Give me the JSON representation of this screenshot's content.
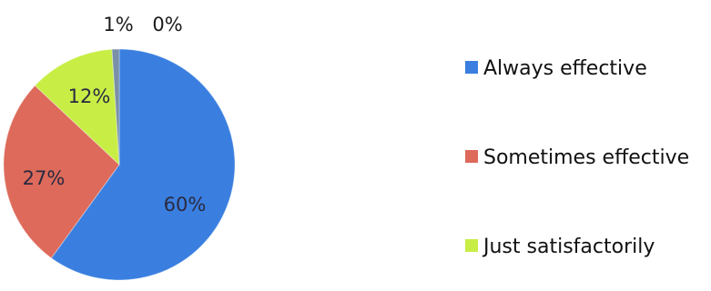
{
  "chart_data": {
    "type": "pie",
    "categories": [
      "Always effective",
      "Sometimes effective",
      "Just satisfactorily",
      "",
      ""
    ],
    "values": [
      60,
      27,
      12,
      1,
      0
    ],
    "labels": [
      "60%",
      "27%",
      "12%",
      "1%",
      "0%"
    ],
    "colors": [
      "#3a7fe0",
      "#dd6a5a",
      "#c8ee45",
      "#7a8fa8",
      "#7a8fa8"
    ],
    "legend": [
      {
        "label": "Always effective",
        "color": "#3a7fe0"
      },
      {
        "label": "Sometimes effective",
        "color": "#dd6a5a"
      },
      {
        "label": "Just satisfactorily",
        "color": "#c8ee45"
      }
    ],
    "legend_position": "right"
  }
}
